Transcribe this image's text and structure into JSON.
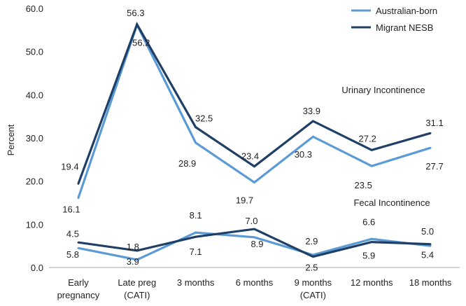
{
  "chart_data": {
    "type": "line",
    "ylabel": "Percent",
    "ylim": [
      0,
      60
    ],
    "yticks": [
      "0.0",
      "10.0",
      "20.0",
      "30.0",
      "40.0",
      "50.0",
      "60.0"
    ],
    "yticks_values": [
      0,
      10,
      20,
      30,
      40,
      50,
      60
    ],
    "categories": [
      [
        "Early",
        "pregnancy"
      ],
      [
        "Late preg",
        "(CATI)"
      ],
      [
        "3 months"
      ],
      [
        "6 months"
      ],
      [
        "9 months",
        "(CATI)"
      ],
      [
        "12 months"
      ],
      [
        "18 months"
      ]
    ],
    "annotations": {
      "urinary": "Urinary Incontinence",
      "fecal": "Fecal Incontinence"
    },
    "legend": [
      {
        "name": "Australian-born",
        "color": "#5b9bd5"
      },
      {
        "name": "Migrant NESB",
        "color": "#1f3f66"
      }
    ],
    "series": [
      {
        "name": "Australian-born",
        "group": "Urinary Incontinence",
        "color": "#5b9bd5",
        "values": [
          16.1,
          56.2,
          28.9,
          19.7,
          30.3,
          23.5,
          27.7
        ],
        "labels": [
          "16.1",
          "56.2",
          "28.9",
          "19.7",
          "30.3",
          "23.5",
          "27.7"
        ]
      },
      {
        "name": "Migrant NESB",
        "group": "Urinary Incontinence",
        "color": "#1f3f66",
        "values": [
          19.4,
          56.3,
          32.5,
          23.4,
          33.9,
          27.2,
          31.1
        ],
        "labels": [
          "19.4",
          "56.3",
          "32.5",
          "23.4",
          "33.9",
          "27.2",
          "31.1"
        ]
      },
      {
        "name": "Australian-born",
        "group": "Fecal Incontinence",
        "color": "#5b9bd5",
        "values": [
          4.5,
          1.8,
          8.1,
          7.0,
          2.9,
          6.6,
          5.0
        ],
        "labels": [
          "4.5",
          "1.8",
          "8.1",
          "7.0",
          "2.9",
          "6.6",
          "5.0"
        ]
      },
      {
        "name": "Migrant NESB",
        "group": "Fecal Incontinence",
        "color": "#1f3f66",
        "values": [
          5.8,
          3.9,
          7.1,
          8.9,
          2.5,
          5.9,
          5.4
        ],
        "labels": [
          "5.8",
          "3.9",
          "7.1",
          "8.9",
          "2.5",
          "5.9",
          "5.4"
        ]
      }
    ]
  }
}
